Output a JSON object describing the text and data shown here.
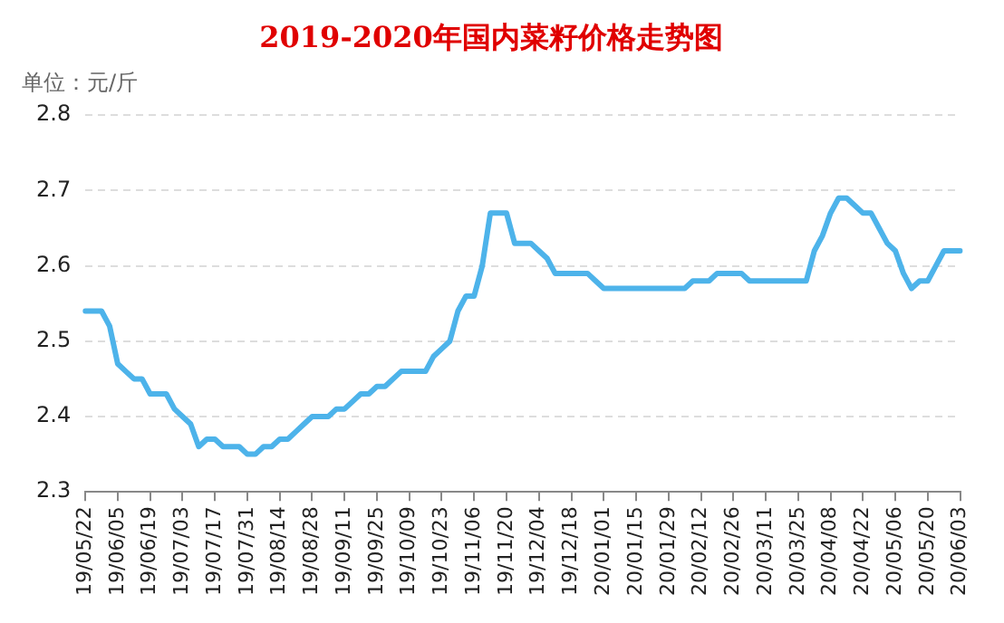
{
  "chart_data": {
    "type": "line",
    "title": "2019-2020年国内菜籽价格走势图",
    "ylabel": "单位：元/斤",
    "categories": [
      "19/05/22",
      null,
      null,
      null,
      "19/06/05",
      null,
      null,
      null,
      "19/06/19",
      null,
      null,
      null,
      "19/07/03",
      null,
      null,
      null,
      "19/07/17",
      null,
      null,
      null,
      "19/07/31",
      null,
      null,
      null,
      "19/08/14",
      null,
      null,
      null,
      "19/08/28",
      null,
      null,
      null,
      "19/09/11",
      null,
      null,
      null,
      "19/09/25",
      null,
      null,
      null,
      "19/10/09",
      null,
      null,
      null,
      "19/10/23",
      null,
      null,
      null,
      "19/11/06",
      null,
      null,
      null,
      "19/11/20",
      null,
      null,
      null,
      "19/12/04",
      null,
      null,
      null,
      "19/12/18",
      null,
      null,
      null,
      "20/01/01",
      null,
      null,
      null,
      "20/01/15",
      null,
      null,
      null,
      "20/01/29",
      null,
      null,
      null,
      "20/02/12",
      null,
      null,
      null,
      "20/02/26",
      null,
      null,
      null,
      "20/03/11",
      null,
      null,
      null,
      "20/03/25",
      null,
      null,
      null,
      "20/04/08",
      null,
      null,
      null,
      "20/04/22",
      null,
      null,
      null,
      "20/05/06",
      null,
      null,
      null,
      "20/05/20",
      null,
      null,
      null,
      "20/06/03"
    ],
    "series": [
      {
        "color": "#4db3ea",
        "values": [
          2.54,
          2.54,
          2.54,
          2.52,
          2.47,
          2.46,
          2.45,
          2.45,
          2.43,
          2.43,
          2.43,
          2.41,
          2.4,
          2.39,
          2.36,
          2.37,
          2.37,
          2.36,
          2.36,
          2.36,
          2.35,
          2.35,
          2.36,
          2.36,
          2.37,
          2.37,
          2.38,
          2.39,
          2.4,
          2.4,
          2.4,
          2.41,
          2.41,
          2.42,
          2.43,
          2.43,
          2.44,
          2.44,
          2.45,
          2.46,
          2.46,
          2.46,
          2.46,
          2.48,
          2.49,
          2.5,
          2.54,
          2.56,
          2.56,
          2.6,
          2.67,
          2.67,
          2.67,
          2.63,
          2.63,
          2.63,
          2.62,
          2.61,
          2.59,
          2.59,
          2.59,
          2.59,
          2.59,
          2.58,
          2.57,
          2.57,
          2.57,
          2.57,
          2.57,
          2.57,
          2.57,
          2.57,
          2.57,
          2.57,
          2.57,
          2.58,
          2.58,
          2.58,
          2.59,
          2.59,
          2.59,
          2.59,
          2.58,
          2.58,
          2.58,
          2.58,
          2.58,
          2.58,
          2.58,
          2.58,
          2.62,
          2.64,
          2.67,
          2.69,
          2.69,
          2.68,
          2.67,
          2.67,
          2.65,
          2.63,
          2.62,
          2.59,
          2.57,
          2.58,
          2.58,
          2.6,
          2.62,
          2.62,
          2.62
        ]
      }
    ],
    "ylim": [
      2.3,
      2.8
    ],
    "yticks": [
      2.3,
      2.4,
      2.5,
      2.6,
      2.7,
      2.8
    ],
    "grid": "y",
    "legend": false,
    "marker": "none",
    "line_style": "solid"
  }
}
